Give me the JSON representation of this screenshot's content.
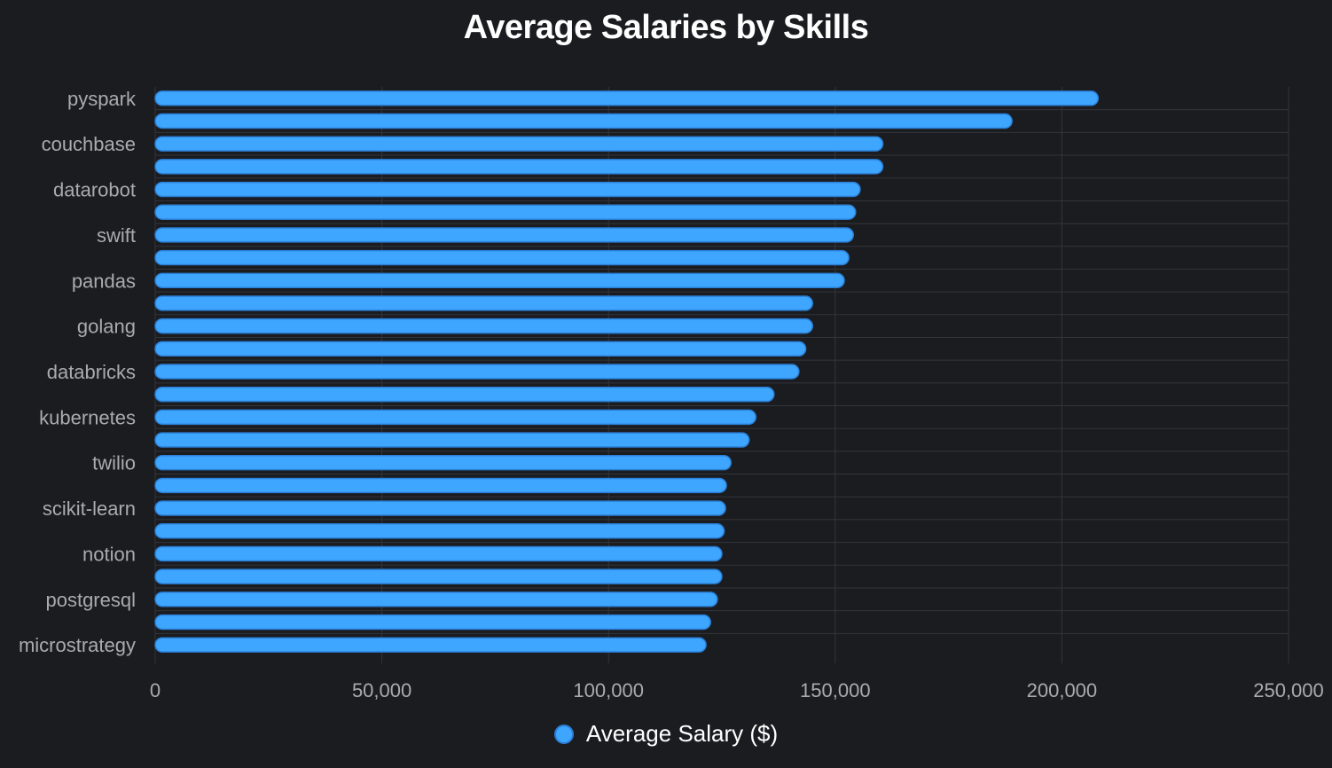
{
  "chart_data": {
    "type": "bar",
    "orientation": "horizontal",
    "title": "Average Salaries by Skills",
    "xlabel": "",
    "ylabel": "",
    "xlim": [
      0,
      250000
    ],
    "x_ticks": [
      0,
      50000,
      100000,
      150000,
      200000,
      250000
    ],
    "x_tick_labels": [
      "0",
      "50,000",
      "100,000",
      "150,000",
      "200,000",
      "250,000"
    ],
    "grid": true,
    "legend_position": "bottom",
    "bar_color": "#3ea6ff",
    "bar_border_color": "#2b7fd6",
    "grid_color": "#33353b",
    "categories": [
      "pyspark",
      "",
      "couchbase",
      "",
      "datarobot",
      "",
      "swift",
      "",
      "pandas",
      "",
      "golang",
      "",
      "databricks",
      "",
      "kubernetes",
      "",
      "twilio",
      "",
      "scikit-learn",
      "",
      "notion",
      "",
      "postgresql",
      "",
      "microstrategy"
    ],
    "series": [
      {
        "name": "Average Salary ($)",
        "values": [
          208000,
          189000,
          160500,
          160500,
          155500,
          154500,
          154000,
          153000,
          152000,
          145000,
          145000,
          143500,
          142000,
          136500,
          132500,
          131000,
          127000,
          126000,
          125800,
          125500,
          125000,
          125000,
          124000,
          122500,
          121500
        ]
      }
    ]
  }
}
